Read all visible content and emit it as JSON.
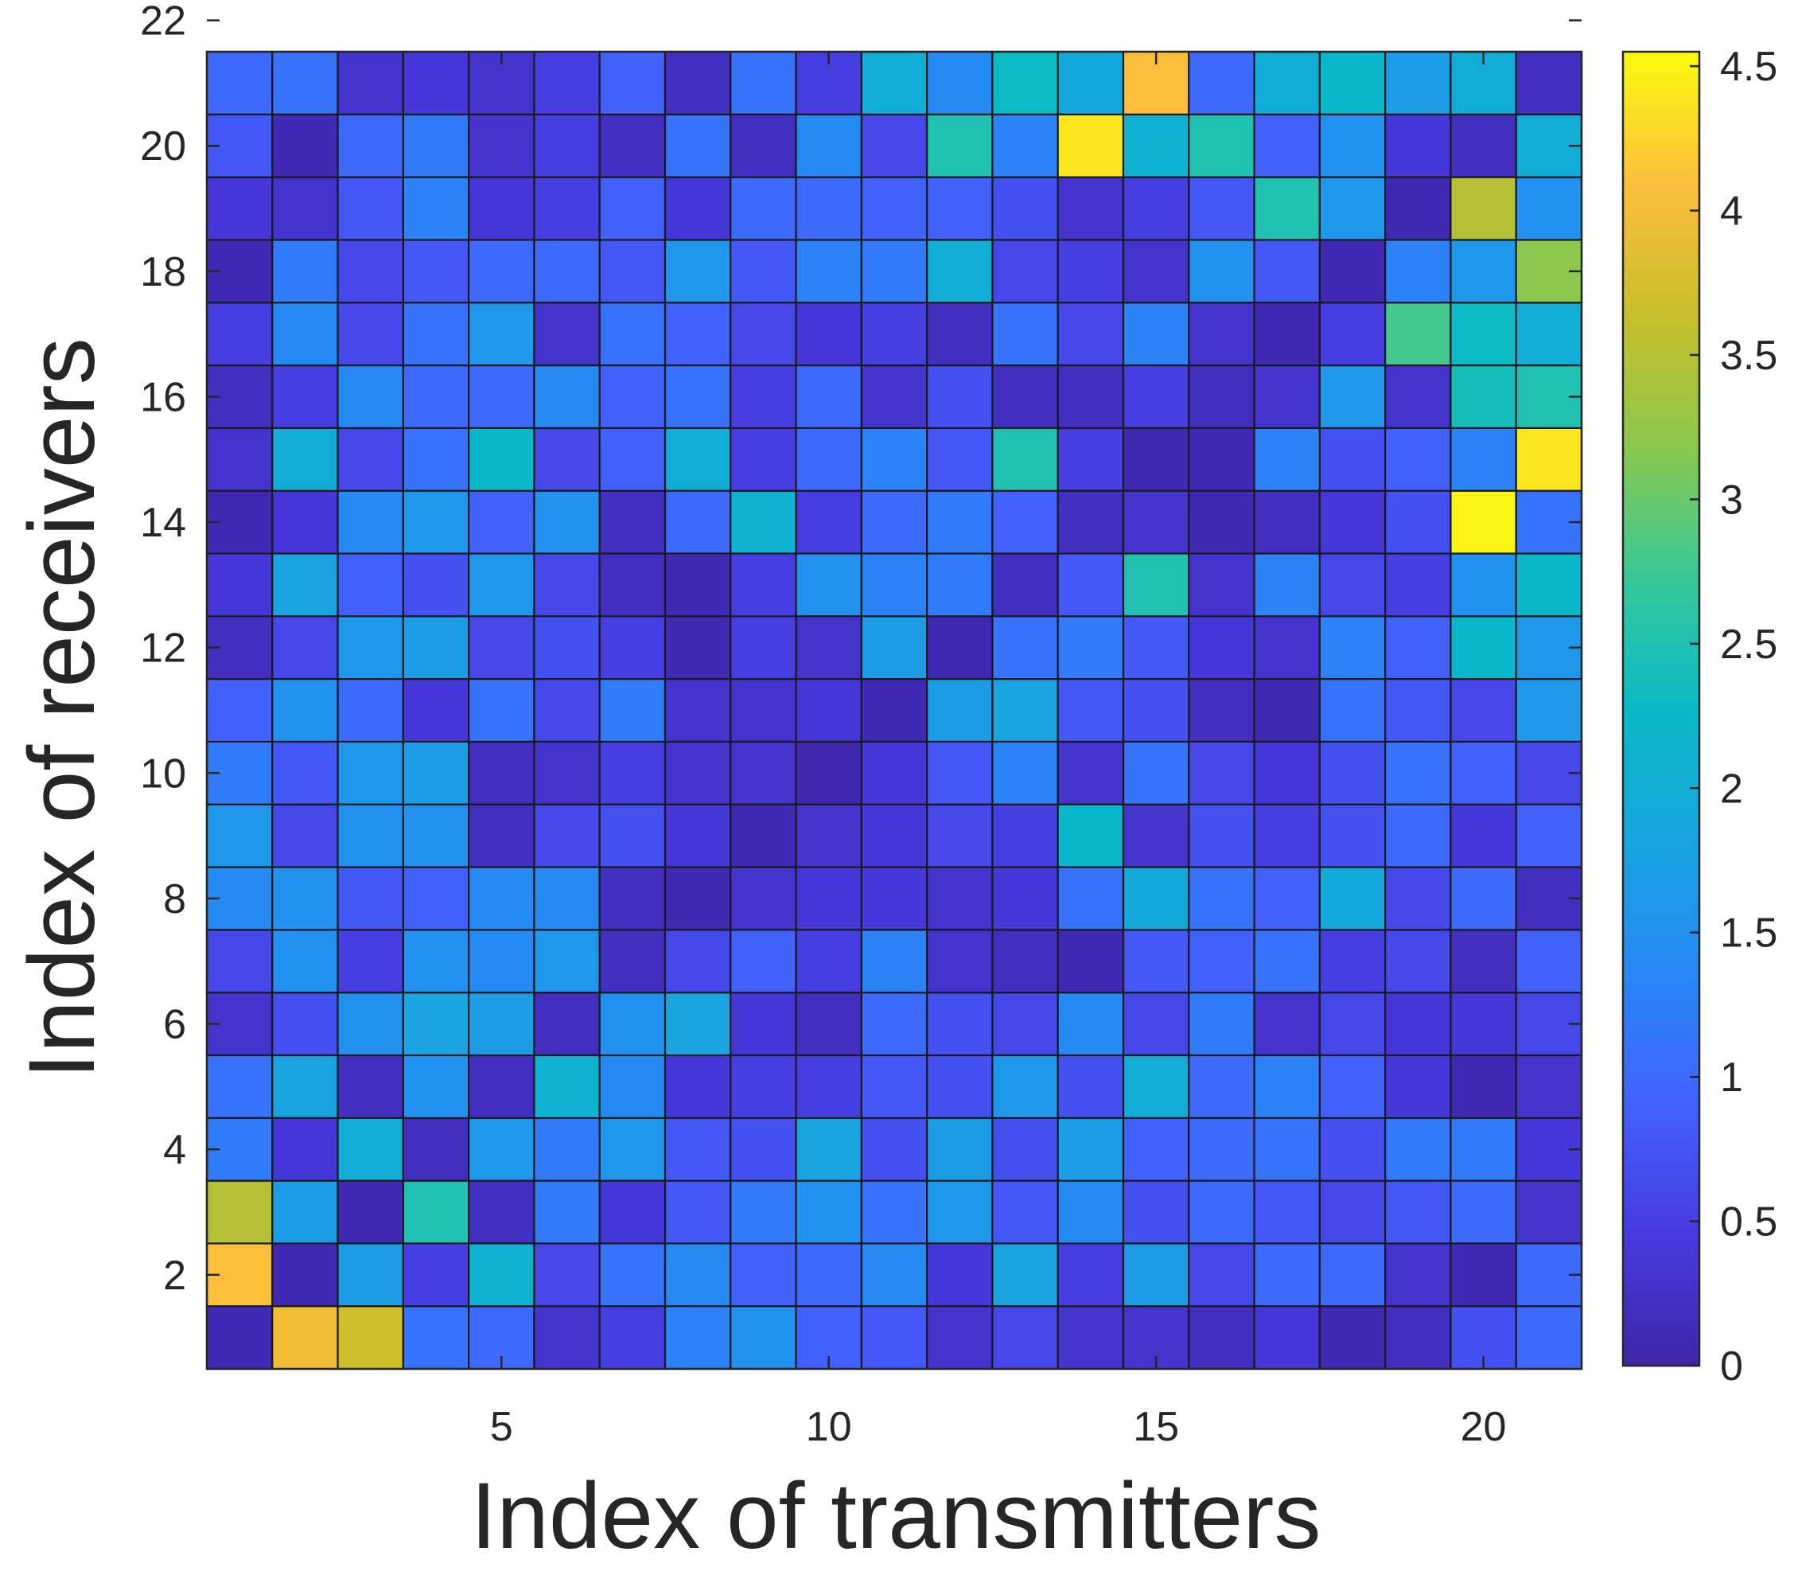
{
  "chart_data": {
    "type": "heatmap",
    "title": "",
    "xlabel": "Index of transmitters",
    "ylabel": "Index of receivers",
    "x": [
      1,
      2,
      3,
      4,
      5,
      6,
      7,
      8,
      9,
      10,
      11,
      12,
      13,
      14,
      15,
      16,
      17,
      18,
      19,
      20,
      21
    ],
    "y": [
      1,
      2,
      3,
      4,
      5,
      6,
      7,
      8,
      9,
      10,
      11,
      12,
      13,
      14,
      15,
      16,
      17,
      18,
      19,
      20,
      21
    ],
    "xlim": [
      0.5,
      21.5
    ],
    "ylim": [
      0.5,
      21.5
    ],
    "xticks": [
      5,
      10,
      15,
      20
    ],
    "xtick_labels": [
      "5",
      "10",
      "15",
      "20"
    ],
    "yticks": [
      2,
      4,
      6,
      8,
      10,
      12,
      14,
      16,
      18,
      20,
      22
    ],
    "ytick_labels": [
      "2",
      "4",
      "6",
      "8",
      "10",
      "12",
      "14",
      "16",
      "18",
      "20",
      "22"
    ],
    "colorbar": {
      "limits": [
        0,
        4.55
      ],
      "ticks": [
        0,
        0.5,
        1,
        1.5,
        2,
        2.5,
        3,
        3.5,
        4,
        4.5
      ],
      "tick_labels": [
        "0",
        "0.5",
        "1",
        "1.5",
        "2",
        "2.5",
        "3",
        "3.5",
        "4",
        "4.5"
      ],
      "colormap": "parula"
    },
    "values": [
      [
        0.1,
        4.0,
        3.7,
        1.1,
        1.0,
        0.3,
        0.5,
        1.3,
        1.5,
        0.9,
        0.8,
        0.3,
        0.6,
        0.3,
        0.3,
        0.2,
        0.4,
        0.1,
        0.2,
        0.7,
        1.0
      ],
      [
        4.1,
        0.1,
        1.7,
        0.5,
        2.1,
        0.6,
        1.1,
        1.4,
        0.9,
        1.0,
        1.4,
        0.4,
        1.8,
        0.5,
        1.7,
        0.6,
        1.0,
        1.0,
        0.3,
        0.1,
        1.0
      ],
      [
        3.5,
        1.7,
        0.1,
        2.5,
        0.2,
        1.2,
        0.4,
        0.8,
        1.2,
        1.5,
        1.1,
        1.6,
        0.8,
        1.4,
        0.7,
        1.0,
        0.8,
        0.6,
        0.8,
        1.0,
        0.3
      ],
      [
        1.2,
        0.4,
        2.0,
        0.2,
        1.6,
        1.2,
        1.6,
        0.8,
        0.7,
        1.8,
        0.7,
        1.7,
        0.7,
        1.7,
        0.9,
        1.0,
        1.1,
        0.7,
        1.2,
        1.2,
        0.4
      ],
      [
        1.1,
        1.8,
        0.2,
        1.5,
        0.2,
        2.1,
        1.4,
        0.4,
        0.5,
        0.5,
        0.8,
        0.7,
        1.6,
        0.7,
        2.0,
        1.0,
        1.3,
        0.9,
        0.4,
        0.1,
        0.3
      ],
      [
        0.3,
        0.7,
        1.5,
        1.8,
        1.7,
        0.2,
        1.5,
        1.8,
        0.4,
        0.2,
        1.0,
        0.7,
        0.6,
        1.4,
        0.6,
        1.2,
        0.3,
        0.6,
        0.4,
        0.4,
        0.6
      ],
      [
        0.6,
        1.5,
        0.5,
        1.5,
        1.4,
        1.6,
        0.2,
        0.6,
        0.9,
        0.5,
        1.3,
        0.3,
        0.2,
        0.1,
        0.8,
        0.9,
        1.1,
        0.5,
        0.6,
        0.2,
        0.9
      ],
      [
        1.4,
        1.5,
        0.8,
        0.9,
        1.4,
        1.4,
        0.2,
        0.1,
        0.3,
        0.4,
        0.4,
        0.3,
        0.4,
        1.1,
        1.9,
        1.1,
        0.9,
        1.9,
        0.6,
        1.0,
        0.2
      ],
      [
        1.6,
        0.6,
        1.5,
        1.5,
        0.2,
        0.6,
        0.7,
        0.4,
        0.1,
        0.3,
        0.4,
        0.6,
        0.5,
        2.2,
        0.3,
        0.7,
        0.5,
        0.7,
        1.0,
        0.4,
        0.9
      ],
      [
        1.2,
        0.8,
        1.6,
        1.7,
        0.2,
        0.3,
        0.5,
        0.3,
        0.3,
        0.05,
        0.4,
        0.8,
        1.3,
        0.3,
        1.1,
        0.6,
        0.4,
        0.7,
        1.1,
        0.9,
        0.6
      ],
      [
        0.9,
        1.5,
        1.0,
        0.4,
        1.1,
        0.6,
        1.2,
        0.3,
        0.3,
        0.4,
        0.1,
        1.7,
        1.8,
        0.8,
        0.7,
        0.2,
        0.1,
        1.1,
        0.8,
        0.6,
        1.6
      ],
      [
        0.2,
        0.6,
        1.6,
        1.7,
        0.6,
        0.7,
        0.5,
        0.1,
        0.5,
        0.3,
        1.7,
        0.1,
        1.1,
        1.2,
        0.8,
        0.4,
        0.3,
        1.3,
        0.9,
        2.2,
        1.6
      ],
      [
        0.4,
        1.8,
        0.9,
        0.7,
        1.6,
        0.6,
        0.2,
        0.1,
        0.5,
        1.5,
        1.3,
        1.2,
        0.2,
        0.8,
        2.5,
        0.3,
        1.3,
        0.6,
        0.5,
        1.5,
        2.2
      ],
      [
        0.1,
        0.4,
        1.4,
        1.6,
        0.9,
        1.5,
        0.2,
        1.0,
        2.1,
        0.5,
        1.0,
        1.2,
        0.9,
        0.2,
        0.3,
        0.1,
        0.2,
        0.4,
        0.7,
        4.5,
        1.1
      ],
      [
        0.3,
        2.0,
        0.6,
        1.1,
        2.2,
        0.6,
        0.9,
        2.0,
        0.5,
        1.0,
        1.3,
        0.8,
        2.5,
        0.5,
        0.1,
        0.1,
        1.3,
        0.7,
        0.9,
        1.3,
        4.4
      ],
      [
        0.2,
        0.5,
        1.4,
        1.0,
        1.0,
        1.4,
        0.9,
        1.1,
        0.5,
        1.0,
        0.3,
        0.7,
        0.2,
        0.2,
        0.5,
        0.2,
        0.3,
        1.6,
        0.3,
        2.4,
        2.5
      ],
      [
        0.5,
        1.4,
        0.6,
        1.1,
        1.6,
        0.3,
        1.1,
        0.9,
        0.6,
        0.4,
        0.5,
        0.2,
        1.1,
        0.6,
        1.3,
        0.3,
        0.1,
        0.5,
        2.8,
        2.3,
        2.0
      ],
      [
        0.1,
        1.2,
        0.6,
        0.8,
        1.0,
        1.0,
        0.8,
        1.6,
        0.8,
        1.3,
        1.2,
        2.0,
        0.6,
        0.5,
        0.3,
        1.5,
        0.8,
        0.1,
        1.3,
        1.6,
        3.2
      ],
      [
        0.4,
        0.3,
        0.8,
        1.3,
        0.4,
        0.5,
        0.9,
        0.4,
        1.0,
        1.0,
        0.9,
        0.9,
        0.7,
        0.3,
        0.5,
        0.8,
        2.5,
        1.6,
        0.1,
        3.5,
        1.5
      ],
      [
        0.8,
        0.1,
        1.0,
        1.2,
        0.3,
        0.5,
        0.2,
        1.1,
        0.2,
        1.4,
        0.6,
        2.5,
        1.3,
        4.4,
        2.1,
        2.5,
        0.9,
        1.5,
        0.4,
        0.2,
        2.0
      ],
      [
        1.0,
        1.1,
        0.3,
        0.4,
        0.3,
        0.5,
        0.9,
        0.2,
        1.1,
        0.5,
        2.0,
        1.4,
        2.3,
        1.9,
        4.1,
        1.0,
        2.0,
        2.2,
        1.7,
        2.0,
        0.2
      ]
    ]
  }
}
